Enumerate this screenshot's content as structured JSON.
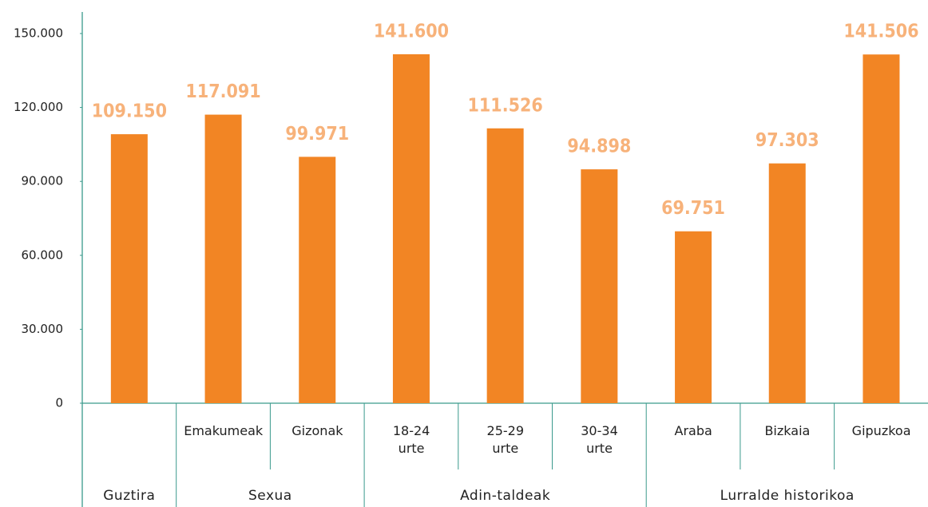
{
  "chart_data": {
    "type": "bar",
    "color": "#f28524",
    "ylim": [
      0,
      150000
    ],
    "yticks": [
      {
        "value": 0,
        "label": "0"
      },
      {
        "value": 30000,
        "label": "30.000"
      },
      {
        "value": 60000,
        "label": "60.000"
      },
      {
        "value": 90000,
        "label": "90.000"
      },
      {
        "value": 120000,
        "label": "120.000"
      },
      {
        "value": 150000,
        "label": "150.000"
      }
    ],
    "groups": [
      {
        "name": "Guztira",
        "categories": [
          null
        ],
        "values": [
          109150
        ],
        "value_labels": [
          "109.150"
        ]
      },
      {
        "name": "Sexua",
        "categories": [
          "Emakumeak",
          "Gizonak"
        ],
        "values": [
          117091,
          99971
        ],
        "value_labels": [
          "117.091",
          "99.971"
        ]
      },
      {
        "name": "Adin-taldeak",
        "categories": [
          "18-24 urte",
          "25-29 urte",
          "30-34 urte"
        ],
        "values": [
          141600,
          111526,
          94898
        ],
        "value_labels": [
          "141.600",
          "111.526",
          "94.898"
        ]
      },
      {
        "name": "Lurralde historikoa",
        "categories": [
          "Araba",
          "Bizkaia",
          "Gipuzkoa"
        ],
        "values": [
          69751,
          97303,
          141506
        ],
        "value_labels": [
          "69.751",
          "97.303",
          "141.506"
        ]
      }
    ]
  }
}
